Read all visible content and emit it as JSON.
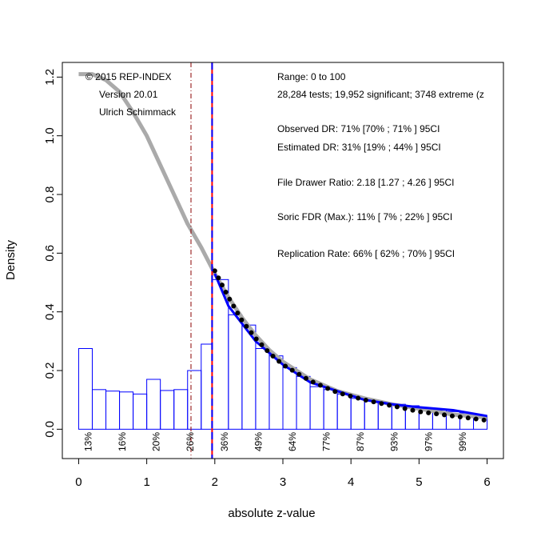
{
  "chart_data": {
    "type": "histogram",
    "xlabel": "absolute z-value",
    "ylabel": "Density",
    "bins": [
      0,
      0.2,
      0.4,
      0.6,
      0.8,
      1.0,
      1.2,
      1.4,
      1.6,
      1.8,
      1.96,
      2.2,
      2.4,
      2.6,
      2.8,
      3.0,
      3.2,
      3.4,
      3.6,
      3.8,
      4.0,
      4.2,
      4.4,
      4.6,
      4.8,
      5.0,
      5.2,
      5.4,
      5.6,
      5.8,
      6.0
    ],
    "counts": [
      0.275,
      0.135,
      0.13,
      0.127,
      0.12,
      0.17,
      0.132,
      0.135,
      0.2,
      0.29,
      0.51,
      0.39,
      0.355,
      0.275,
      0.25,
      0.21,
      0.18,
      0.145,
      0.135,
      0.12,
      0.105,
      0.1,
      0.09,
      0.085,
      0.08,
      0.07,
      0.065,
      0.06,
      0.055,
      0.045
    ],
    "bar_color": "#0000ff",
    "xlim": [
      -0.24,
      6.24
    ],
    "ylim": [
      -0.1,
      1.25
    ],
    "xticks": [
      0,
      1,
      2,
      3,
      4,
      5,
      6
    ],
    "yticks": [
      {
        "value": 0,
        "label": "0.0"
      },
      0.2,
      0.4,
      0.6,
      0.8,
      {
        "value": 1,
        "label": "1.0"
      },
      1.2
    ],
    "lines": [
      {
        "color": "#aaaaaa",
        "style": "solid",
        "x": [
          0,
          0.2,
          0.4,
          0.6,
          0.8,
          1.0,
          1.2,
          1.4,
          1.6,
          1.8,
          2.0,
          2.2,
          2.4,
          2.6,
          2.8,
          3.0,
          3.4,
          3.8,
          4.2,
          4.6,
          5.0,
          5.5,
          6.0
        ],
        "y": [
          1.21,
          1.21,
          1.19,
          1.15,
          1.08,
          1.0,
          0.9,
          0.8,
          0.7,
          0.62,
          0.53,
          0.45,
          0.38,
          0.32,
          0.27,
          0.23,
          0.17,
          0.13,
          0.105,
          0.085,
          0.07,
          0.05,
          0.04
        ]
      },
      {
        "color": "#0000ff",
        "style": "solid",
        "x": [
          2.0,
          2.2,
          2.4,
          2.6,
          2.8,
          3.0,
          3.4,
          3.8,
          4.2,
          4.6,
          5.0,
          5.5,
          6.0
        ],
        "y": [
          0.53,
          0.42,
          0.36,
          0.3,
          0.26,
          0.22,
          0.16,
          0.13,
          0.1,
          0.085,
          0.075,
          0.065,
          0.045
        ]
      },
      {
        "color": "#000000",
        "style": "dotted",
        "x": [
          2.0,
          2.2,
          2.4,
          2.6,
          2.8,
          3.0,
          3.4,
          3.8,
          4.2,
          4.6,
          5.0,
          5.5,
          6.0
        ],
        "y": [
          0.54,
          0.45,
          0.37,
          0.31,
          0.26,
          0.22,
          0.165,
          0.125,
          0.1,
          0.08,
          0.06,
          0.045,
          0.03
        ]
      }
    ],
    "vlines": [
      {
        "x": 1.65,
        "color": "#8b0000",
        "style": "dashdot"
      },
      {
        "x": 1.96,
        "color": "#ff0000",
        "style": "solid"
      },
      {
        "x": 1.96,
        "color": "#0000ff",
        "style": "dashed"
      }
    ],
    "annotations_left": [
      "© 2015 REP-INDEX",
      "Version 20.01",
      "Ulrich Schimmack"
    ],
    "annotations_right": [
      "Range: 0 to 100",
      "28,284 tests; 19,952 significant; 3748 extreme (z",
      "Observed DR: 71% [70% ; 71% ] 95CI",
      "Estimated DR: 31% [19% ; 44% ] 95CI",
      "File Drawer Ratio: 2.18 [1.27 ; 4.26 ] 95CI",
      "Soric FDR (Max.): 11% [ 7% ; 22% ] 95CI",
      "Replication Rate: 66% [ 62% ; 70% ] 95CI"
    ],
    "percent_labels": [
      "13%",
      "16%",
      "20%",
      "26%",
      "36%",
      "49%",
      "64%",
      "77%",
      "87%",
      "93%",
      "97%",
      "99%"
    ]
  }
}
